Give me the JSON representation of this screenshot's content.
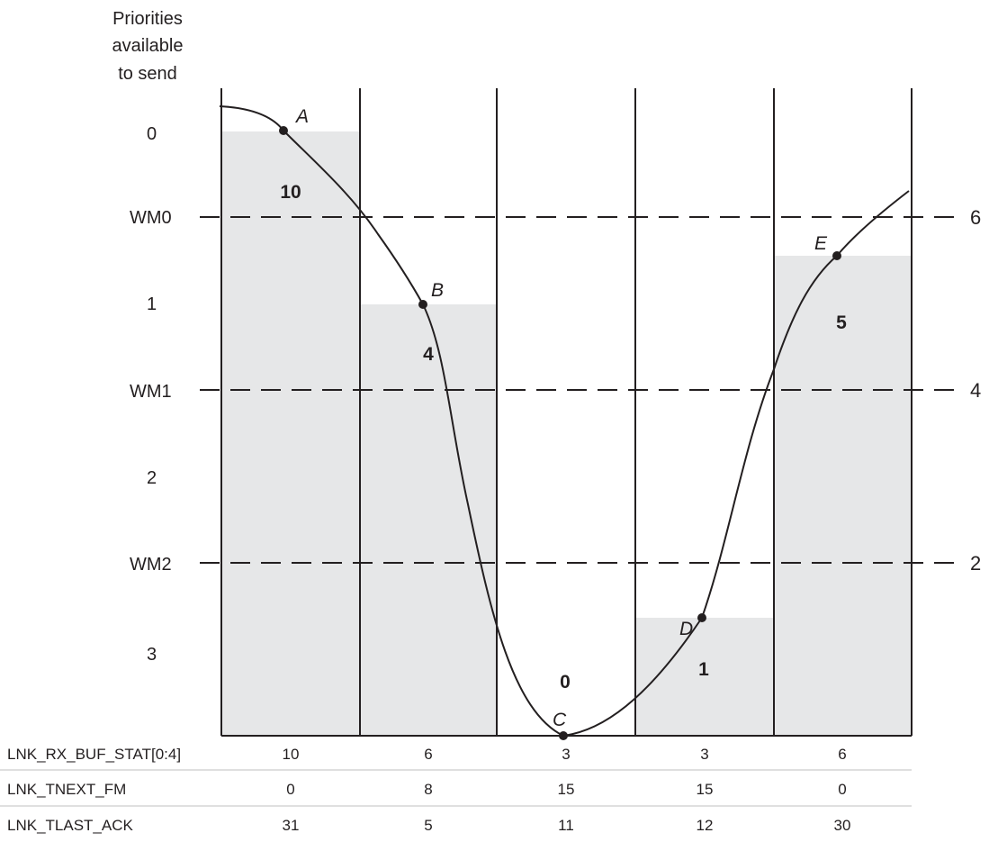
{
  "y_axis_title": [
    "Priorities",
    "available",
    "to send"
  ],
  "left_labels": [
    "0",
    "WM0",
    "1",
    "WM1",
    "2",
    "WM2",
    "3"
  ],
  "right_labels": [
    "6",
    "4",
    "2"
  ],
  "bar_values": [
    "10",
    "4",
    "0",
    "1",
    "5"
  ],
  "points": [
    "A",
    "B",
    "C",
    "D",
    "E"
  ],
  "table": {
    "rows": [
      {
        "label": "LNK_RX_BUF_STAT[0:4]",
        "cells": [
          "10",
          "6",
          "3",
          "3",
          "6"
        ]
      },
      {
        "label": "LNK_TNEXT_FM",
        "cells": [
          "0",
          "8",
          "15",
          "15",
          "0"
        ]
      },
      {
        "label": "LNK_TLAST_ACK",
        "cells": [
          "31",
          "5",
          "11",
          "12",
          "30"
        ]
      }
    ]
  },
  "colors": {
    "bar_fill": "#e6e7e8",
    "ink": "#231f20",
    "rule": "#bfbfbf"
  }
}
